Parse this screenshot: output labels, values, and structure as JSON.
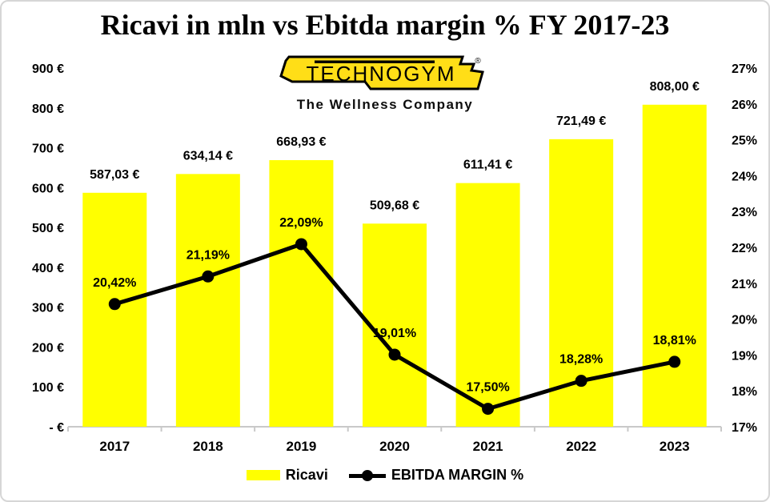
{
  "logo": {
    "brand": "TECHNOGYM",
    "registered": "®",
    "tagline": "The Wellness Company",
    "plate_color": "#FFDE17"
  },
  "colors": {
    "bar": "#FFFF00",
    "line": "#000000",
    "axis": "#C9C9C9",
    "text": "#000000",
    "frame_border": "#D6D6D6"
  },
  "chart_data": {
    "type": "bar",
    "subtype": "combo-bar-line",
    "title": "Ricavi in mln vs Ebitda margin % FY 2017-23",
    "categories": [
      "2017",
      "2018",
      "2019",
      "2020",
      "2021",
      "2022",
      "2023"
    ],
    "series": [
      {
        "name": "Ricavi",
        "type": "bar",
        "axis": "left",
        "color": "#FFFF00",
        "values": [
          587.03,
          634.14,
          668.93,
          509.68,
          611.41,
          721.49,
          808.0
        ],
        "labels": [
          "587,03 €",
          "634,14 €",
          "668,93 €",
          "509,68 €",
          "611,41 €",
          "721,49 €",
          "808,00 €"
        ]
      },
      {
        "name": "EBITDA MARGIN %",
        "type": "line",
        "axis": "right",
        "color": "#000000",
        "values": [
          20.42,
          21.19,
          22.09,
          19.01,
          17.5,
          18.28,
          18.81
        ],
        "labels": [
          "20,42%",
          "21,19%",
          "22,09%",
          "19,01%",
          "17,50%",
          "18,28%",
          "18,81%"
        ]
      }
    ],
    "left_axis": {
      "min": 0,
      "max": 900,
      "step": 100,
      "tick_labels": [
        "- €",
        "100 €",
        "200 €",
        "300 €",
        "400 €",
        "500 €",
        "600 €",
        "700 €",
        "800 €",
        "900 €"
      ]
    },
    "right_axis": {
      "min": 17,
      "max": 27,
      "step": 1,
      "tick_labels": [
        "17%",
        "18%",
        "19%",
        "20%",
        "21%",
        "22%",
        "23%",
        "24%",
        "25%",
        "26%",
        "27%"
      ]
    },
    "grid": false,
    "legend_position": "bottom",
    "legend": [
      {
        "label": "Ricavi",
        "swatch": "bar",
        "color": "#FFFF00"
      },
      {
        "label": "EBITDA MARGIN %",
        "swatch": "line-marker",
        "color": "#000000"
      }
    ]
  }
}
